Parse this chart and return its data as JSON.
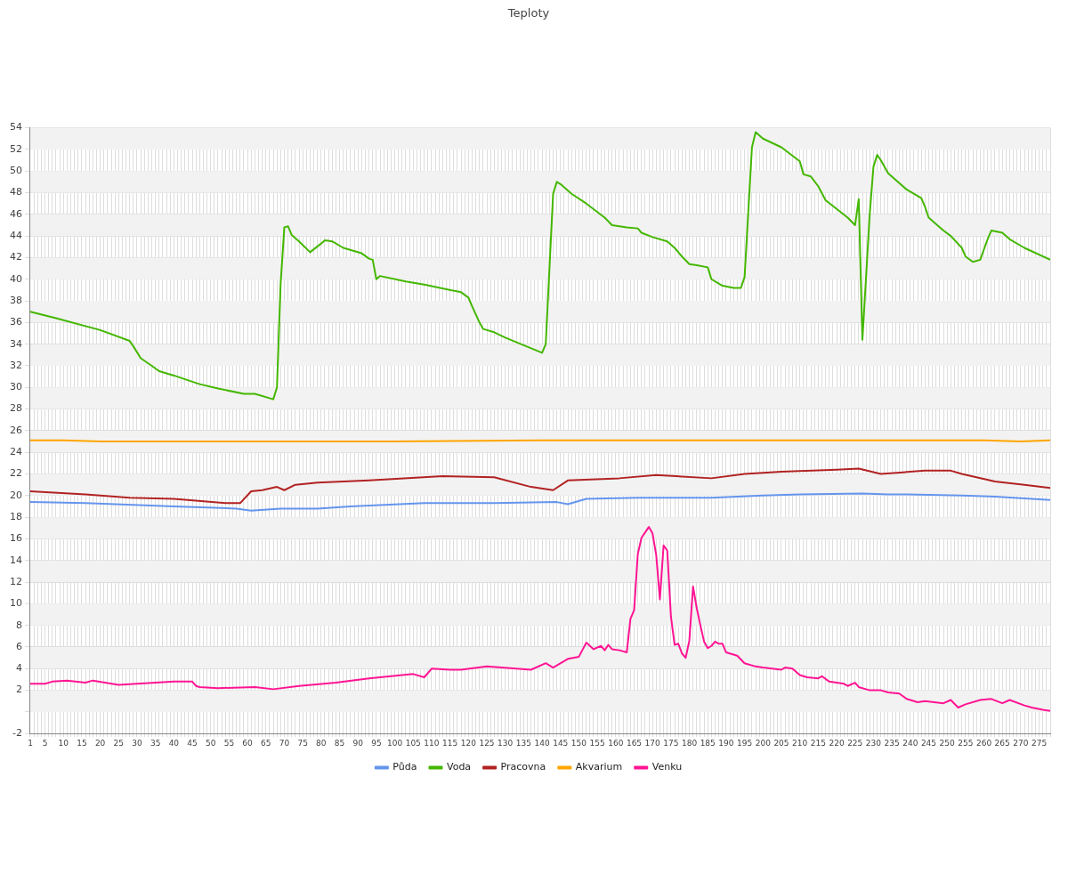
{
  "chart_data": {
    "type": "line",
    "title": "Teploty",
    "xlim": [
      1,
      278
    ],
    "xticks": [
      1,
      {
        "value": 2,
        "label": null
      },
      {
        "value": 3,
        "label": null
      },
      {
        "value": 4,
        "label": null
      },
      5,
      {
        "value": 6,
        "label": null
      },
      {
        "value": 7,
        "label": null
      },
      {
        "value": 8,
        "label": null
      },
      {
        "value": 9,
        "label": null
      },
      10,
      {
        "value": 11,
        "label": null
      },
      {
        "value": 12,
        "label": null
      },
      {
        "value": 13,
        "label": null
      },
      {
        "value": 14,
        "label": null
      },
      15,
      {
        "value": 16,
        "label": null
      },
      {
        "value": 17,
        "label": null
      },
      {
        "value": 18,
        "label": null
      },
      {
        "value": 19,
        "label": null
      },
      20,
      {
        "value": 21,
        "label": null
      },
      {
        "value": 22,
        "label": null
      },
      {
        "value": 23,
        "label": null
      },
      {
        "value": 24,
        "label": null
      },
      25,
      {
        "value": 26,
        "label": null
      },
      {
        "value": 27,
        "label": null
      },
      {
        "value": 28,
        "label": null
      },
      {
        "value": 29,
        "label": null
      },
      30,
      {
        "value": 31,
        "label": null
      },
      {
        "value": 32,
        "label": null
      },
      {
        "value": 33,
        "label": null
      },
      {
        "value": 34,
        "label": null
      },
      35,
      {
        "value": 36,
        "label": null
      },
      {
        "value": 37,
        "label": null
      },
      {
        "value": 38,
        "label": null
      },
      {
        "value": 39,
        "label": null
      },
      40,
      {
        "value": 41,
        "label": null
      },
      {
        "value": 42,
        "label": null
      },
      {
        "value": 43,
        "label": null
      },
      {
        "value": 44,
        "label": null
      },
      45,
      {
        "value": 46,
        "label": null
      },
      {
        "value": 47,
        "label": null
      },
      {
        "value": 48,
        "label": null
      },
      {
        "value": 49,
        "label": null
      },
      50,
      {
        "value": 51,
        "label": null
      },
      {
        "value": 52,
        "label": null
      },
      {
        "value": 53,
        "label": null
      },
      {
        "value": 54,
        "label": null
      },
      55,
      {
        "value": 56,
        "label": null
      },
      {
        "value": 57,
        "label": null
      },
      {
        "value": 58,
        "label": null
      },
      {
        "value": 59,
        "label": null
      },
      60,
      {
        "value": 61,
        "label": null
      },
      {
        "value": 62,
        "label": null
      },
      {
        "value": 63,
        "label": null
      },
      {
        "value": 64,
        "label": null
      },
      65,
      {
        "value": 66,
        "label": null
      },
      {
        "value": 67,
        "label": null
      },
      {
        "value": 68,
        "label": null
      },
      {
        "value": 69,
        "label": null
      },
      70,
      {
        "value": 71,
        "label": null
      },
      {
        "value": 72,
        "label": null
      },
      {
        "value": 73,
        "label": null
      },
      {
        "value": 74,
        "label": null
      },
      75,
      {
        "value": 76,
        "label": null
      },
      {
        "value": 77,
        "label": null
      },
      {
        "value": 78,
        "label": null
      },
      {
        "value": 79,
        "label": null
      },
      80,
      {
        "value": 81,
        "label": null
      },
      {
        "value": 82,
        "label": null
      },
      {
        "value": 83,
        "label": null
      },
      {
        "value": 84,
        "label": null
      },
      85,
      {
        "value": 86,
        "label": null
      },
      {
        "value": 87,
        "label": null
      },
      {
        "value": 88,
        "label": null
      },
      {
        "value": 89,
        "label": null
      },
      90,
      {
        "value": 91,
        "label": null
      },
      {
        "value": 92,
        "label": null
      },
      {
        "value": 93,
        "label": null
      },
      {
        "value": 94,
        "label": null
      },
      95,
      {
        "value": 96,
        "label": null
      },
      {
        "value": 97,
        "label": null
      },
      {
        "value": 98,
        "label": null
      },
      {
        "value": 99,
        "label": null
      },
      100,
      {
        "value": 101,
        "label": null
      },
      {
        "value": 102,
        "label": null
      },
      {
        "value": 103,
        "label": null
      },
      {
        "value": 104,
        "label": null
      },
      105,
      {
        "value": 106,
        "label": null
      },
      {
        "value": 107,
        "label": null
      },
      {
        "value": 108,
        "label": null
      },
      {
        "value": 109,
        "label": null
      },
      110,
      {
        "value": 111,
        "label": null
      },
      {
        "value": 112,
        "label": null
      },
      {
        "value": 113,
        "label": null
      },
      {
        "value": 114,
        "label": null
      },
      115,
      {
        "value": 116,
        "label": null
      },
      {
        "value": 117,
        "label": null
      },
      {
        "value": 118,
        "label": null
      },
      {
        "value": 119,
        "label": null
      },
      120,
      {
        "value": 121,
        "label": null
      },
      {
        "value": 122,
        "label": null
      },
      {
        "value": 123,
        "label": null
      },
      {
        "value": 124,
        "label": null
      },
      125,
      {
        "value": 126,
        "label": null
      },
      {
        "value": 127,
        "label": null
      },
      {
        "value": 128,
        "label": null
      },
      {
        "value": 129,
        "label": null
      },
      130,
      {
        "value": 131,
        "label": null
      },
      {
        "value": 132,
        "label": null
      },
      {
        "value": 133,
        "label": null
      },
      {
        "value": 134,
        "label": null
      },
      135,
      {
        "value": 136,
        "label": null
      },
      {
        "value": 137,
        "label": null
      },
      {
        "value": 138,
        "label": null
      },
      {
        "value": 139,
        "label": null
      },
      140,
      {
        "value": 141,
        "label": null
      },
      {
        "value": 142,
        "label": null
      },
      {
        "value": 143,
        "label": null
      },
      {
        "value": 144,
        "label": null
      },
      145,
      {
        "value": 146,
        "label": null
      },
      {
        "value": 147,
        "label": null
      },
      {
        "value": 148,
        "label": null
      },
      {
        "value": 149,
        "label": null
      },
      150,
      {
        "value": 151,
        "label": null
      },
      {
        "value": 152,
        "label": null
      },
      {
        "value": 153,
        "label": null
      },
      {
        "value": 154,
        "label": null
      },
      155,
      {
        "value": 156,
        "label": null
      },
      {
        "value": 157,
        "label": null
      },
      {
        "value": 158,
        "label": null
      },
      {
        "value": 159,
        "label": null
      },
      160,
      {
        "value": 161,
        "label": null
      },
      {
        "value": 162,
        "label": null
      },
      {
        "value": 163,
        "label": null
      },
      {
        "value": 164,
        "label": null
      },
      165,
      {
        "value": 166,
        "label": null
      },
      {
        "value": 167,
        "label": null
      },
      {
        "value": 168,
        "label": null
      },
      {
        "value": 169,
        "label": null
      },
      170,
      {
        "value": 171,
        "label": null
      },
      {
        "value": 172,
        "label": null
      },
      {
        "value": 173,
        "label": null
      },
      {
        "value": 174,
        "label": null
      },
      175,
      {
        "value": 176,
        "label": null
      },
      {
        "value": 177,
        "label": null
      },
      {
        "value": 178,
        "label": null
      },
      {
        "value": 179,
        "label": null
      },
      180,
      {
        "value": 181,
        "label": null
      },
      {
        "value": 182,
        "label": null
      },
      {
        "value": 183,
        "label": null
      },
      {
        "value": 184,
        "label": null
      },
      185,
      {
        "value": 186,
        "label": null
      },
      {
        "value": 187,
        "label": null
      },
      {
        "value": 188,
        "label": null
      },
      {
        "value": 189,
        "label": null
      },
      190,
      {
        "value": 191,
        "label": null
      },
      {
        "value": 192,
        "label": null
      },
      {
        "value": 193,
        "label": null
      },
      {
        "value": 194,
        "label": null
      },
      195,
      {
        "value": 196,
        "label": null
      },
      {
        "value": 197,
        "label": null
      },
      {
        "value": 198,
        "label": null
      },
      {
        "value": 199,
        "label": null
      },
      200,
      {
        "value": 201,
        "label": null
      },
      {
        "value": 202,
        "label": null
      },
      {
        "value": 203,
        "label": null
      },
      {
        "value": 204,
        "label": null
      },
      205,
      {
        "value": 206,
        "label": null
      },
      {
        "value": 207,
        "label": null
      },
      {
        "value": 208,
        "label": null
      },
      {
        "value": 209,
        "label": null
      },
      210,
      {
        "value": 211,
        "label": null
      },
      {
        "value": 212,
        "label": null
      },
      {
        "value": 213,
        "label": null
      },
      {
        "value": 214,
        "label": null
      },
      215,
      {
        "value": 216,
        "label": null
      },
      {
        "value": 217,
        "label": null
      },
      {
        "value": 218,
        "label": null
      },
      {
        "value": 219,
        "label": null
      },
      220,
      {
        "value": 221,
        "label": null
      },
      {
        "value": 222,
        "label": null
      },
      {
        "value": 223,
        "label": null
      },
      {
        "value": 224,
        "label": null
      },
      225,
      {
        "value": 226,
        "label": null
      },
      {
        "value": 227,
        "label": null
      },
      {
        "value": 228,
        "label": null
      },
      {
        "value": 229,
        "label": null
      },
      230,
      {
        "value": 231,
        "label": null
      },
      {
        "value": 232,
        "label": null
      },
      {
        "value": 233,
        "label": null
      },
      {
        "value": 234,
        "label": null
      },
      235,
      {
        "value": 236,
        "label": null
      },
      {
        "value": 237,
        "label": null
      },
      {
        "value": 238,
        "label": null
      },
      {
        "value": 239,
        "label": null
      },
      240,
      {
        "value": 241,
        "label": null
      },
      {
        "value": 242,
        "label": null
      },
      {
        "value": 243,
        "label": null
      },
      {
        "value": 244,
        "label": null
      },
      245,
      {
        "value": 246,
        "label": null
      },
      {
        "value": 247,
        "label": null
      },
      {
        "value": 248,
        "label": null
      },
      {
        "value": 249,
        "label": null
      },
      250,
      {
        "value": 251,
        "label": null
      },
      {
        "value": 252,
        "label": null
      },
      {
        "value": 253,
        "label": null
      },
      {
        "value": 254,
        "label": null
      },
      255,
      {
        "value": 256,
        "label": null
      },
      {
        "value": 257,
        "label": null
      },
      {
        "value": 258,
        "label": null
      },
      {
        "value": 259,
        "label": null
      },
      260,
      {
        "value": 261,
        "label": null
      },
      {
        "value": 262,
        "label": null
      },
      {
        "value": 263,
        "label": null
      },
      {
        "value": 264,
        "label": null
      },
      265,
      {
        "value": 266,
        "label": null
      },
      {
        "value": 267,
        "label": null
      },
      {
        "value": 268,
        "label": null
      },
      {
        "value": 269,
        "label": null
      },
      270,
      {
        "value": 271,
        "label": null
      },
      {
        "value": 272,
        "label": null
      },
      {
        "value": 273,
        "label": null
      },
      {
        "value": 274,
        "label": null
      },
      275,
      {
        "value": 276,
        "label": null
      },
      {
        "value": 277,
        "label": null
      },
      {
        "value": 278,
        "label": null
      }
    ],
    "ylim": [
      -2,
      54
    ],
    "yticks": [
      -2,
      {
        "value": 0,
        "label": null
      },
      2,
      4,
      6,
      8,
      10,
      12,
      14,
      16,
      18,
      20,
      22,
      24,
      26,
      28,
      30,
      32,
      34,
      36,
      38,
      40,
      42,
      44,
      46,
      48,
      50,
      52,
      54
    ],
    "grid": true,
    "legend": "bottom",
    "line_style": "solid",
    "marker": "none",
    "series": [
      {
        "name": "Půda",
        "color": "#6495ed",
        "x": [
          1,
          16,
          40,
          57,
          61,
          69,
          79,
          88,
          108,
          127,
          144,
          147,
          152,
          166,
          186,
          200,
          210,
          227,
          234,
          239,
          254,
          263,
          278
        ],
        "values": [
          19.4,
          19.3,
          19.0,
          18.8,
          18.6,
          18.8,
          18.8,
          19.0,
          19.3,
          19.3,
          19.4,
          19.2,
          19.7,
          19.8,
          19.8,
          20.0,
          20.1,
          20.2,
          20.1,
          20.1,
          20.0,
          19.9,
          19.6
        ]
      },
      {
        "name": "Voda",
        "color": "#44b700",
        "x": [
          1,
          8,
          20,
          28,
          29,
          31,
          34,
          36,
          40,
          47,
          52,
          59,
          62,
          67,
          68,
          69,
          70,
          71,
          72,
          74,
          77,
          80,
          81,
          83,
          86,
          91,
          93,
          94,
          95,
          96,
          103,
          108,
          118,
          120,
          121,
          123,
          124,
          127,
          130,
          135,
          140,
          141,
          143,
          144,
          145,
          148,
          152,
          157,
          159,
          163,
          166,
          167,
          170,
          174,
          176,
          178,
          180,
          182,
          185,
          186,
          188,
          189,
          192,
          194,
          195,
          197,
          198,
          200,
          205,
          210,
          211,
          213,
          215,
          217,
          220,
          223,
          225,
          226,
          227,
          229,
          230,
          231,
          232,
          234,
          239,
          243,
          244,
          245,
          249,
          251,
          254,
          255,
          257,
          259,
          261,
          262,
          265,
          267,
          271,
          278
        ],
        "values": [
          37.0,
          36.4,
          35.3,
          34.3,
          33.8,
          32.7,
          32.0,
          31.5,
          31.1,
          30.3,
          29.9,
          29.4,
          29.4,
          28.9,
          30.0,
          39.6,
          44.8,
          44.9,
          44.1,
          43.5,
          42.5,
          43.3,
          43.6,
          43.5,
          42.9,
          42.4,
          41.9,
          41.8,
          40.0,
          40.3,
          39.8,
          39.5,
          38.8,
          38.3,
          37.5,
          36.0,
          35.4,
          35.1,
          34.6,
          33.9,
          33.2,
          34.0,
          47.9,
          49.0,
          48.8,
          47.9,
          47.0,
          45.7,
          45.0,
          44.8,
          44.7,
          44.3,
          43.9,
          43.5,
          42.9,
          42.1,
          41.4,
          41.3,
          41.1,
          40.0,
          39.6,
          39.4,
          39.2,
          39.2,
          40.2,
          52.2,
          53.6,
          53.0,
          52.2,
          50.9,
          49.7,
          49.5,
          48.6,
          47.3,
          46.5,
          45.7,
          45.0,
          47.4,
          34.4,
          46.1,
          50.4,
          51.5,
          51.0,
          49.8,
          48.3,
          47.5,
          46.7,
          45.7,
          44.5,
          44.0,
          42.9,
          42.1,
          41.6,
          41.8,
          43.7,
          44.5,
          44.3,
          43.7,
          42.9,
          41.8
        ]
      },
      {
        "name": "Pracovna",
        "color": "#b22222",
        "x": [
          1,
          16,
          28,
          40,
          54,
          58,
          61,
          64,
          68,
          70,
          73,
          79,
          93,
          113,
          127,
          137,
          143,
          147,
          161,
          171,
          186,
          195,
          205,
          220,
          226,
          232,
          244,
          251,
          254,
          263,
          271,
          278
        ],
        "values": [
          20.4,
          20.1,
          19.8,
          19.7,
          19.3,
          19.3,
          20.4,
          20.5,
          20.8,
          20.5,
          21.0,
          21.2,
          21.4,
          21.8,
          21.7,
          20.8,
          20.5,
          21.4,
          21.6,
          21.9,
          21.6,
          22.0,
          22.2,
          22.4,
          22.5,
          22.0,
          22.3,
          22.3,
          22.0,
          21.3,
          21.0,
          20.7
        ]
      },
      {
        "name": "Akvarium",
        "color": "#ffa500",
        "x": [
          1,
          10,
          20,
          60,
          80,
          100,
          140,
          180,
          220,
          260,
          270,
          278
        ],
        "values": [
          25.1,
          25.1,
          25.0,
          25.0,
          25.0,
          25.0,
          25.1,
          25.1,
          25.1,
          25.1,
          25.0,
          25.1
        ]
      },
      {
        "name": "Venku",
        "color": "#ff1493",
        "x": [
          1,
          5,
          7,
          11,
          16,
          18,
          25,
          40,
          45,
          46,
          47,
          52,
          62,
          67,
          74,
          84,
          93,
          105,
          108,
          110,
          115,
          118,
          125,
          137,
          141,
          143,
          147,
          150,
          152,
          154,
          156,
          157,
          158,
          159,
          161,
          163,
          164,
          165,
          166,
          167,
          168,
          169,
          170,
          171,
          172,
          173,
          174,
          175,
          176,
          177,
          178,
          179,
          180,
          181,
          182,
          183,
          184,
          185,
          186,
          187,
          188,
          189,
          190,
          191,
          193,
          195,
          198,
          200,
          205,
          206,
          208,
          210,
          212,
          215,
          216,
          218,
          222,
          223,
          225,
          226,
          229,
          232,
          234,
          237,
          239,
          242,
          244,
          249,
          251,
          253,
          255,
          259,
          262,
          265,
          267,
          271,
          273,
          276,
          278
        ],
        "values": [
          2.6,
          2.6,
          2.8,
          2.9,
          2.7,
          2.9,
          2.5,
          2.8,
          2.8,
          2.4,
          2.3,
          2.2,
          2.3,
          2.1,
          2.4,
          2.7,
          3.1,
          3.5,
          3.2,
          4.0,
          3.9,
          3.9,
          4.2,
          3.9,
          4.5,
          4.1,
          4.9,
          5.1,
          6.4,
          5.8,
          6.1,
          5.7,
          6.2,
          5.8,
          5.7,
          5.5,
          8.6,
          9.4,
          14.6,
          16.1,
          16.6,
          17.1,
          16.5,
          14.5,
          10.4,
          15.4,
          14.9,
          8.8,
          6.2,
          6.3,
          5.4,
          5.0,
          6.6,
          11.6,
          9.6,
          8.0,
          6.5,
          5.9,
          6.1,
          6.5,
          6.3,
          6.3,
          5.5,
          5.4,
          5.2,
          4.5,
          4.2,
          4.1,
          3.9,
          4.1,
          4.0,
          3.4,
          3.2,
          3.1,
          3.3,
          2.8,
          2.6,
          2.4,
          2.7,
          2.3,
          2.0,
          2.0,
          1.8,
          1.7,
          1.2,
          0.9,
          1.0,
          0.8,
          1.1,
          0.4,
          0.7,
          1.1,
          1.2,
          0.8,
          1.1,
          0.6,
          0.4,
          0.2,
          0.1
        ]
      }
    ]
  }
}
